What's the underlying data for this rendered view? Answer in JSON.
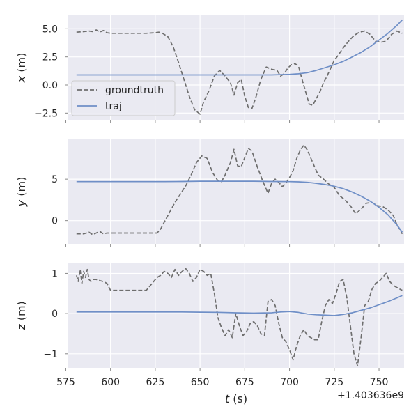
{
  "chart_data": {
    "type": "line",
    "xlabel": "t (s)",
    "x_offset_label": "+1.403636e9",
    "xlim": [
      576,
      764
    ],
    "x_ticks": [
      575,
      600,
      625,
      650,
      675,
      700,
      725,
      750
    ],
    "x_tick_labels": [
      "575",
      "600",
      "625",
      "650",
      "675",
      "700",
      "725",
      "750"
    ],
    "grid": true,
    "legend": {
      "location": "center-left",
      "entries": [
        "groundtruth",
        "traj"
      ]
    },
    "colors": {
      "background": "#eaeaf2",
      "groundtruth": "#6e6e6e",
      "traj": "#6f8fc7",
      "grid": "#ffffff"
    },
    "panels": [
      {
        "ylabel": "x (m)",
        "ylim": [
          -3.1,
          6.2
        ],
        "y_ticks": [
          -2.5,
          0.0,
          2.5,
          5.0
        ],
        "y_tick_labels": [
          "−2.5",
          "0.0",
          "2.5",
          "5.0"
        ],
        "series": [
          {
            "name": "groundtruth",
            "style": "dashed",
            "x": [
              581,
              585,
              588,
              590,
              592,
              594,
              596,
              598,
              600,
              605,
              610,
              615,
              620,
              625,
              627,
              629,
              632,
              635,
              638,
              641,
              644,
              647,
              650,
              652,
              655,
              658,
              661,
              664,
              667,
              669,
              671,
              673,
              675,
              677,
              679,
              681,
              684,
              687,
              690,
              693,
              695,
              697,
              699,
              701,
              703,
              705,
              707,
              709,
              711,
              713,
              715,
              717,
              719,
              721,
              723,
              725,
              727,
              730,
              733,
              736,
              739,
              742,
              745,
              748,
              751,
              754,
              757,
              760,
              763
            ],
            "y": [
              4.7,
              4.75,
              4.8,
              4.75,
              4.9,
              4.7,
              4.85,
              4.65,
              4.6,
              4.6,
              4.6,
              4.6,
              4.6,
              4.65,
              4.7,
              4.6,
              4.3,
              3.4,
              2.0,
              0.5,
              -1.0,
              -2.2,
              -2.6,
              -1.5,
              -0.5,
              0.8,
              1.3,
              0.8,
              0.2,
              -0.9,
              0.2,
              0.5,
              -1.0,
              -2.0,
              -2.1,
              -1.2,
              0.5,
              1.6,
              1.4,
              1.3,
              0.8,
              1.0,
              1.5,
              1.8,
              1.9,
              1.7,
              0.5,
              -0.6,
              -1.7,
              -1.8,
              -1.2,
              -0.6,
              0.2,
              0.8,
              1.5,
              2.2,
              2.6,
              3.3,
              3.9,
              4.4,
              4.7,
              4.8,
              4.5,
              3.9,
              3.8,
              3.9,
              4.5,
              4.8,
              4.6
            ]
          },
          {
            "name": "traj",
            "style": "solid",
            "x": [
              581,
              590,
              600,
              610,
              620,
              630,
              640,
              650,
              660,
              670,
              680,
              690,
              700,
              705,
              710,
              715,
              720,
              725,
              730,
              735,
              740,
              745,
              750,
              755,
              760,
              763
            ],
            "y": [
              0.9,
              0.9,
              0.9,
              0.9,
              0.9,
              0.9,
              0.9,
              0.9,
              0.9,
              0.9,
              0.9,
              0.9,
              0.95,
              1.0,
              1.1,
              1.3,
              1.55,
              1.8,
              2.1,
              2.5,
              2.9,
              3.4,
              4.0,
              4.6,
              5.3,
              5.8
            ]
          }
        ]
      },
      {
        "ylabel": "y (m)",
        "ylim": [
          -2.8,
          9.8
        ],
        "y_ticks": [
          0,
          5
        ],
        "y_tick_labels": [
          "0",
          "5"
        ],
        "series": [
          {
            "name": "groundtruth",
            "style": "dashed",
            "x": [
              581,
              585,
              588,
              590,
              592,
              594,
              596,
              598,
              600,
              605,
              610,
              615,
              620,
              626,
              628,
              630,
              633,
              636,
              639,
              642,
              645,
              648,
              651,
              654,
              657,
              660,
              662,
              664,
              667,
              669,
              671,
              673,
              675,
              677,
              679,
              682,
              685,
              688,
              690,
              692,
              694,
              696,
              698,
              700,
              702,
              704,
              706,
              708,
              710,
              712,
              714,
              716,
              719,
              722,
              725,
              728,
              731,
              734,
              737,
              740,
              743,
              746,
              749,
              752,
              755,
              758,
              760,
              762,
              763
            ],
            "y": [
              -1.6,
              -1.6,
              -1.4,
              -1.7,
              -1.5,
              -1.3,
              -1.6,
              -1.5,
              -1.5,
              -1.5,
              -1.5,
              -1.5,
              -1.5,
              -1.5,
              -1.0,
              -0.2,
              1.0,
              2.2,
              3.2,
              4.2,
              5.5,
              7.0,
              7.8,
              7.5,
              5.8,
              4.8,
              4.7,
              5.5,
              7.0,
              8.6,
              6.6,
              6.5,
              7.6,
              8.7,
              8.4,
              6.5,
              4.8,
              3.3,
              4.5,
              5.0,
              4.6,
              4.1,
              4.5,
              5.2,
              6.0,
              7.5,
              8.5,
              9.1,
              8.5,
              7.5,
              6.5,
              5.5,
              5.0,
              4.4,
              4.0,
              3.0,
              2.5,
              1.8,
              0.8,
              1.4,
              2.1,
              2.2,
              1.8,
              1.7,
              1.3,
              0.6,
              -0.5,
              -1.2,
              -1.6
            ]
          },
          {
            "name": "traj",
            "style": "solid",
            "x": [
              581,
              590,
              600,
              610,
              620,
              630,
              640,
              650,
              660,
              670,
              680,
              690,
              700,
              705,
              710,
              715,
              720,
              725,
              730,
              735,
              740,
              745,
              750,
              755,
              760,
              763
            ],
            "y": [
              4.7,
              4.7,
              4.7,
              4.7,
              4.7,
              4.7,
              4.72,
              4.75,
              4.75,
              4.75,
              4.75,
              4.72,
              4.7,
              4.68,
              4.62,
              4.5,
              4.35,
              4.15,
              3.85,
              3.45,
              2.95,
              2.35,
              1.6,
              0.7,
              -0.5,
              -1.4
            ]
          }
        ]
      },
      {
        "ylabel": "z (m)",
        "ylim": [
          -1.35,
          1.25
        ],
        "y_ticks": [
          -1,
          0,
          1
        ],
        "y_tick_labels": [
          "−1",
          "0",
          "1"
        ],
        "series": [
          {
            "name": "groundtruth",
            "style": "dashed",
            "x": [
              581,
              582,
              583,
              584,
              585,
              586,
              587,
              588,
              589,
              590,
              592,
              594,
              596,
              598,
              600,
              605,
              610,
              615,
              620,
              626,
              628,
              630,
              632,
              634,
              636,
              638,
              640,
              642,
              644,
              646,
              648,
              650,
              652,
              654,
              656,
              658,
              660,
              662,
              664,
              666,
              668,
              670,
              672,
              674,
              676,
              678,
              680,
              682,
              684,
              686,
              688,
              690,
              692,
              694,
              696,
              698,
              700,
              702,
              704,
              706,
              708,
              710,
              712,
              714,
              716,
              718,
              720,
              722,
              724,
              726,
              728,
              730,
              732,
              734,
              736,
              738,
              740,
              742,
              744,
              746,
              748,
              750,
              752,
              754,
              756,
              758,
              760,
              762,
              763
            ],
            "y": [
              0.95,
              0.8,
              1.1,
              0.75,
              1.05,
              0.9,
              1.1,
              0.85,
              0.8,
              0.85,
              0.85,
              0.82,
              0.8,
              0.75,
              0.58,
              0.58,
              0.58,
              0.58,
              0.58,
              0.9,
              0.95,
              1.05,
              1.0,
              0.9,
              1.1,
              0.95,
              1.05,
              1.12,
              1.0,
              0.8,
              0.9,
              1.1,
              1.05,
              0.95,
              1.0,
              0.5,
              -0.1,
              -0.35,
              -0.55,
              -0.4,
              -0.6,
              0.0,
              -0.3,
              -0.55,
              -0.45,
              -0.25,
              -0.2,
              -0.3,
              -0.5,
              -0.55,
              0.3,
              0.35,
              0.2,
              -0.25,
              -0.6,
              -0.7,
              -0.9,
              -1.15,
              -0.8,
              -0.55,
              -0.4,
              -0.55,
              -0.6,
              -0.65,
              -0.65,
              -0.2,
              0.2,
              0.35,
              0.25,
              0.5,
              0.8,
              0.85,
              0.4,
              -0.3,
              -1.0,
              -1.3,
              -0.6,
              0.2,
              0.3,
              0.6,
              0.75,
              0.8,
              0.9,
              1.0,
              0.8,
              0.7,
              0.65,
              0.6,
              0.58
            ]
          },
          {
            "name": "traj",
            "style": "solid",
            "x": [
              581,
              590,
              600,
              610,
              620,
              630,
              640,
              650,
              660,
              670,
              680,
              690,
              695,
              700,
              705,
              710,
              715,
              720,
              725,
              730,
              735,
              740,
              745,
              750,
              755,
              760,
              763
            ],
            "y": [
              0.04,
              0.04,
              0.04,
              0.04,
              0.04,
              0.04,
              0.04,
              0.035,
              0.03,
              0.02,
              0.01,
              0.02,
              0.04,
              0.05,
              0.03,
              -0.01,
              -0.03,
              -0.04,
              -0.05,
              -0.02,
              0.02,
              0.08,
              0.14,
              0.22,
              0.3,
              0.39,
              0.45
            ]
          }
        ]
      }
    ]
  }
}
